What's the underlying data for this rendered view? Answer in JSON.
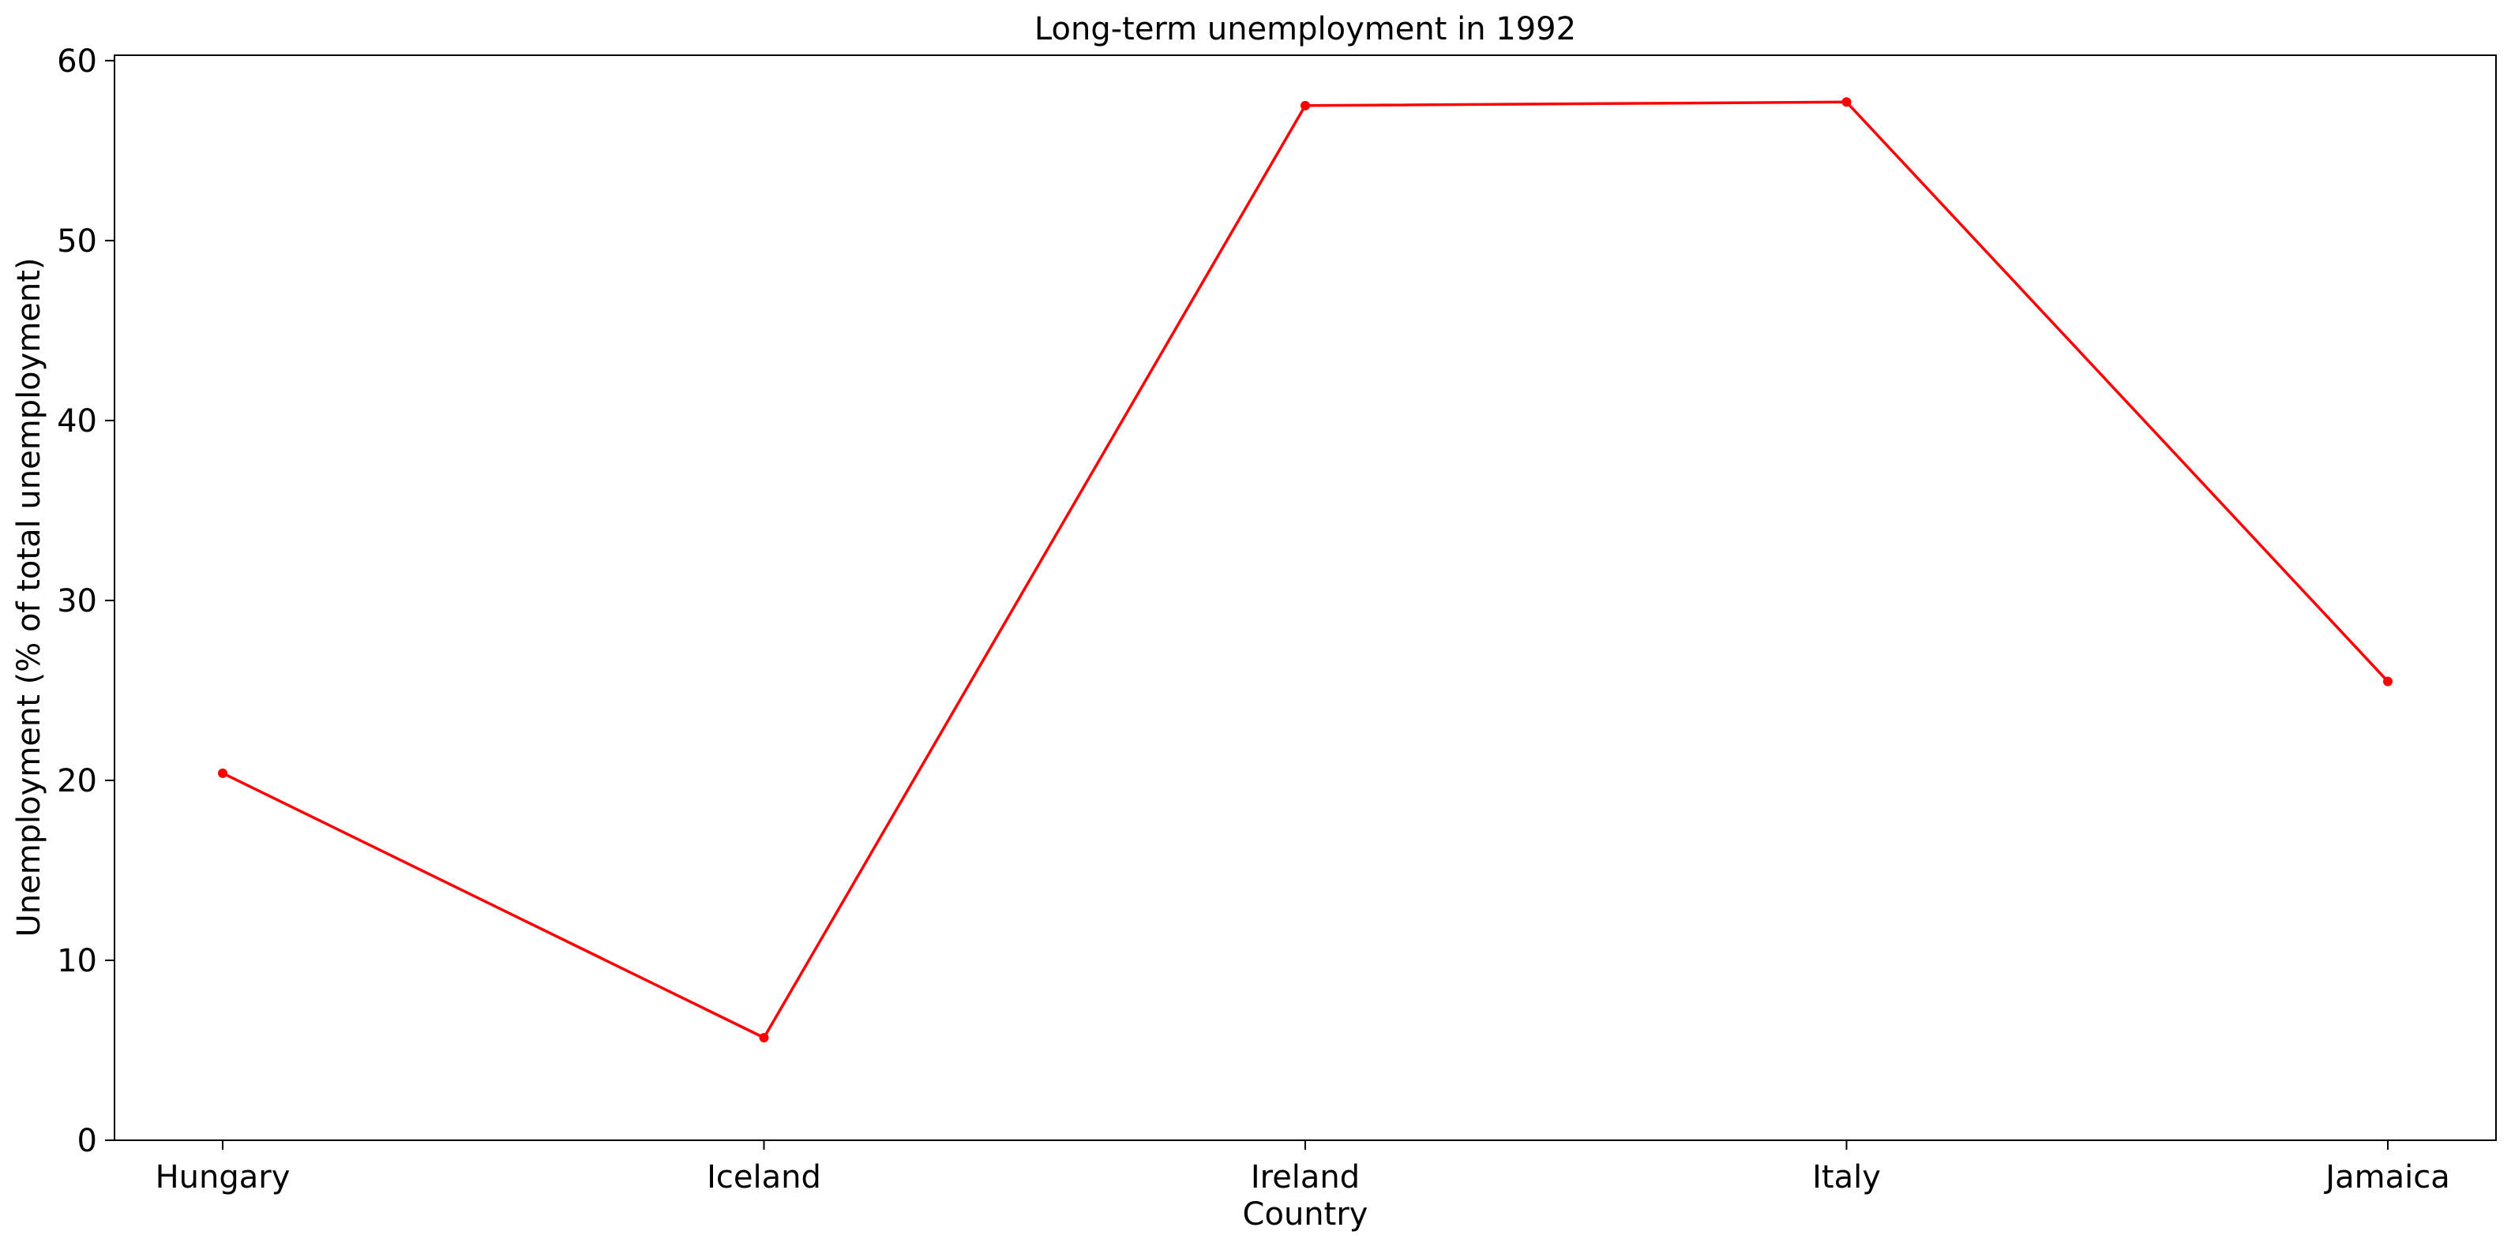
{
  "chart_data": {
    "type": "line",
    "title": "Long-term unemployment in 1992",
    "xlabel": "Country",
    "ylabel": "Unemployment (% of total unemployment)",
    "categories": [
      "Hungary",
      "Iceland",
      "Ireland",
      "Italy",
      "Jamaica"
    ],
    "series": [
      {
        "values": [
          20.4,
          5.7,
          57.5,
          57.7,
          25.5
        ],
        "color": "#ff0000"
      }
    ],
    "ylim": [
      0,
      60.3
    ],
    "yticks": [
      0,
      10,
      20,
      30,
      40,
      50,
      60
    ],
    "grid": false,
    "legend": "none"
  }
}
